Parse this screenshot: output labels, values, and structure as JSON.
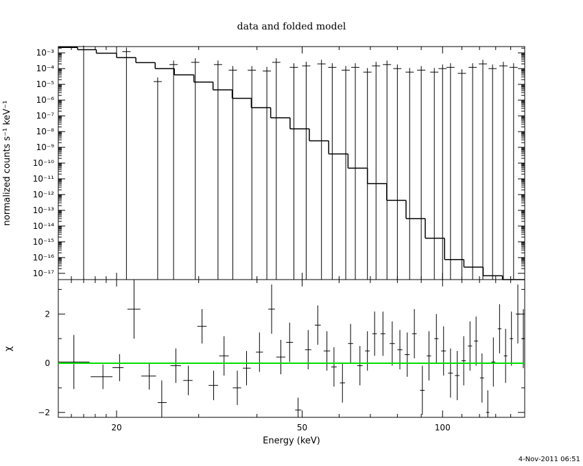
{
  "chart_data": [
    {
      "type": "line",
      "title": "data and folded model",
      "xlabel": "",
      "ylabel": "normalized counts s⁻¹ keV⁻¹",
      "xscale": "log",
      "yscale": "log",
      "xlim": [
        15,
        150
      ],
      "ylim": [
        4e-18,
        0.0025
      ],
      "grid": false,
      "y_tick_labels": [
        "10⁻³",
        "10⁻⁴",
        "10⁻⁵",
        "10⁻⁶",
        "10⁻⁷",
        "10⁻⁸",
        "10⁻⁹",
        "10⁻¹⁰",
        "10⁻¹¹",
        "10⁻¹²",
        "10⁻¹³",
        "10⁻¹⁴",
        "10⁻¹⁵",
        "10⁻¹⁶",
        "10⁻¹⁷"
      ],
      "series": [
        {
          "role": "model",
          "color": "#000000",
          "style": "step",
          "x": [
            15.0,
            16.5,
            18.1,
            20.0,
            22.0,
            24.2,
            26.6,
            29.3,
            32.2,
            35.4,
            38.9,
            42.8,
            47.1,
            51.8,
            57.0,
            62.7,
            69.0,
            75.9,
            83.5,
            91.8,
            101.0,
            111.1,
            122.2,
            134.4,
            147.9
          ],
          "y": [
            0.0022,
            0.0016,
            0.00095,
            0.0005,
            0.00024,
            0.0001,
            4e-05,
            1.4e-05,
            4.5e-06,
            1.3e-06,
            3.3e-07,
            7.5e-08,
            1.5e-08,
            2.6e-09,
            3.8e-10,
            4.8e-11,
            5e-12,
            4.3e-13,
            3e-14,
            1.7e-15,
            7.5e-17,
            2.5e-17,
            7e-18,
            4e-18,
            4e-18
          ]
        },
        {
          "role": "data",
          "color": "#000000",
          "style": "crosses",
          "x": [
            17.0,
            21.0,
            24.5,
            26.5,
            29.5,
            33.0,
            35.5,
            39.0,
            42.0,
            44.0,
            48.0,
            51.0,
            55.0,
            58.0,
            62.0,
            65.0,
            69.0,
            72.0,
            76.0,
            80.0,
            85.0,
            90.0,
            96.0,
            100.0,
            104.0,
            110.0,
            116.0,
            122.0,
            128.0,
            135.0,
            142.0
          ],
          "y": [
            0.0016,
            0.0012,
            1.5e-05,
            0.00018,
            0.00025,
            0.00018,
            8e-05,
            8e-05,
            7e-05,
            0.00025,
            0.00012,
            0.00015,
            0.0002,
            0.00012,
            8e-05,
            0.00012,
            6e-05,
            0.00015,
            0.00018,
            0.0001,
            6e-05,
            8e-05,
            6e-05,
            0.0001,
            0.00012,
            5e-05,
            0.00012,
            0.0002,
            0.0001,
            0.00015,
            0.00012
          ]
        }
      ]
    },
    {
      "type": "scatter",
      "title": "",
      "xlabel": "Energy (keV)",
      "ylabel": "χ",
      "xscale": "log",
      "xlim": [
        15,
        150
      ],
      "ylim": [
        -2.2,
        3.4
      ],
      "grid": false,
      "x_ticks": [
        20,
        50,
        100
      ],
      "x_tick_labels": [
        "20",
        "50",
        "100"
      ],
      "y_ticks": [
        -2,
        0,
        2
      ],
      "y_tick_labels": [
        "−2",
        "0",
        "2"
      ],
      "zero_line_color": "#00dd00",
      "series": [
        {
          "role": "residuals",
          "color": "#000000",
          "points": [
            {
              "x": 16.2,
              "y": 0.05,
              "xerr": [
                15.0,
                17.5
              ],
              "yerr": 1.1
            },
            {
              "x": 18.7,
              "y": -0.55,
              "xerr": [
                17.6,
                19.6
              ],
              "yerr": 0.5
            },
            {
              "x": 20.3,
              "y": -0.18,
              "xerr": [
                19.6,
                20.7
              ],
              "yerr": 0.55
            },
            {
              "x": 21.8,
              "y": 2.2,
              "xerr": [
                21.1,
                22.5
              ],
              "yerr": 1.2
            },
            {
              "x": 23.5,
              "y": -0.52,
              "xerr": [
                22.6,
                24.3
              ],
              "yerr": 0.55
            },
            {
              "x": 25.0,
              "y": -1.6,
              "xerr": [
                24.5,
                25.6
              ],
              "yerr": 0.9
            },
            {
              "x": 26.8,
              "y": -0.1,
              "xerr": [
                26.1,
                27.5
              ],
              "yerr": 0.7
            },
            {
              "x": 28.5,
              "y": -0.7,
              "xerr": [
                27.8,
                29.1
              ],
              "yerr": 0.6
            },
            {
              "x": 30.5,
              "y": 1.5,
              "xerr": [
                29.8,
                31.2
              ],
              "yerr": 0.7
            },
            {
              "x": 32.3,
              "y": -0.9,
              "xerr": [
                31.5,
                33.0
              ],
              "yerr": 0.6
            },
            {
              "x": 34.0,
              "y": 0.3,
              "xerr": [
                33.2,
                34.8
              ],
              "yerr": 0.8
            },
            {
              "x": 36.3,
              "y": -1.0,
              "xerr": [
                35.5,
                37.0
              ],
              "yerr": 0.7
            },
            {
              "x": 38.0,
              "y": -0.2,
              "xerr": [
                37.3,
                38.8
              ],
              "yerr": 0.7
            },
            {
              "x": 40.5,
              "y": 0.45,
              "xerr": [
                39.8,
                41.2
              ],
              "yerr": 0.8
            },
            {
              "x": 43.0,
              "y": 2.2,
              "xerr": [
                42.3,
                43.7
              ],
              "yerr": 1.0
            },
            {
              "x": 45.0,
              "y": 0.25,
              "xerr": [
                44.0,
                46.0
              ],
              "yerr": 0.7
            },
            {
              "x": 47.0,
              "y": 0.85,
              "xerr": [
                46.2,
                47.8
              ],
              "yerr": 0.8
            },
            {
              "x": 49.0,
              "y": -1.9,
              "xerr": [
                48.3,
                49.8
              ],
              "yerr": 0.5
            },
            {
              "x": 51.5,
              "y": 0.55,
              "xerr": [
                50.7,
                52.3
              ],
              "yerr": 0.8
            },
            {
              "x": 54.0,
              "y": 1.55,
              "xerr": [
                53.2,
                54.8
              ],
              "yerr": 0.8
            },
            {
              "x": 56.5,
              "y": 0.5,
              "xerr": [
                55.6,
                57.4
              ],
              "yerr": 0.8
            },
            {
              "x": 58.5,
              "y": -0.15,
              "xerr": [
                57.7,
                59.3
              ],
              "yerr": 0.8
            },
            {
              "x": 61.0,
              "y": -0.8,
              "xerr": [
                60.2,
                61.8
              ],
              "yerr": 0.8
            },
            {
              "x": 63.5,
              "y": 0.8,
              "xerr": [
                62.7,
                64.3
              ],
              "yerr": 0.8
            },
            {
              "x": 66.5,
              "y": -0.1,
              "xerr": [
                65.6,
                67.4
              ],
              "yerr": 0.8
            },
            {
              "x": 69.0,
              "y": 0.5,
              "xerr": [
                68.2,
                69.8
              ],
              "yerr": 0.8
            },
            {
              "x": 71.5,
              "y": 1.2,
              "xerr": [
                70.7,
                72.3
              ],
              "yerr": 0.9
            },
            {
              "x": 74.5,
              "y": 1.2,
              "xerr": [
                73.6,
                75.4
              ],
              "yerr": 0.9
            },
            {
              "x": 78.0,
              "y": 0.8,
              "xerr": [
                77.0,
                79.0
              ],
              "yerr": 0.9
            },
            {
              "x": 81.0,
              "y": 0.55,
              "xerr": [
                80.0,
                82.0
              ],
              "yerr": 0.8
            },
            {
              "x": 84.0,
              "y": 0.35,
              "xerr": [
                83.0,
                85.0
              ],
              "yerr": 0.9
            },
            {
              "x": 87.0,
              "y": 1.2,
              "xerr": [
                86.0,
                88.0
              ],
              "yerr": 1.0
            },
            {
              "x": 90.5,
              "y": -1.1,
              "xerr": [
                89.5,
                91.5
              ],
              "yerr": 1.0
            },
            {
              "x": 93.5,
              "y": 0.3,
              "xerr": [
                92.5,
                94.5
              ],
              "yerr": 1.0
            },
            {
              "x": 97.0,
              "y": 1.0,
              "xerr": [
                96.0,
                98.0
              ],
              "yerr": 1.0
            },
            {
              "x": 100.5,
              "y": 0.5,
              "xerr": [
                99.3,
                101.7
              ],
              "yerr": 1.0
            },
            {
              "x": 104.0,
              "y": -0.4,
              "xerr": [
                102.8,
                105.2
              ],
              "yerr": 1.0
            },
            {
              "x": 107.5,
              "y": -0.5,
              "xerr": [
                106.3,
                108.7
              ],
              "yerr": 1.0
            },
            {
              "x": 111.0,
              "y": 0.1,
              "xerr": [
                109.8,
                112.2
              ],
              "yerr": 1.0
            },
            {
              "x": 114.5,
              "y": 0.7,
              "xerr": [
                113.3,
                115.7
              ],
              "yerr": 1.0
            },
            {
              "x": 118.0,
              "y": 0.9,
              "xerr": [
                116.8,
                119.2
              ],
              "yerr": 1.0
            },
            {
              "x": 121.5,
              "y": -0.6,
              "xerr": [
                120.3,
                122.7
              ],
              "yerr": 1.0
            },
            {
              "x": 125.0,
              "y": -2.0,
              "xerr": [
                124.0,
                126.0
              ],
              "yerr": 0.9
            },
            {
              "x": 128.5,
              "y": 0.05,
              "xerr": [
                127.3,
                129.7
              ],
              "yerr": 1.0
            },
            {
              "x": 132.5,
              "y": 1.4,
              "xerr": [
                131.3,
                133.7
              ],
              "yerr": 1.0
            },
            {
              "x": 136.5,
              "y": 0.3,
              "xerr": [
                135.3,
                137.7
              ],
              "yerr": 1.1
            },
            {
              "x": 140.5,
              "y": 1.0,
              "xerr": [
                139.3,
                141.7
              ],
              "yerr": 1.1
            },
            {
              "x": 145.0,
              "y": 2.0,
              "xerr": [
                143.5,
                146.5
              ],
              "yerr": 1.2
            },
            {
              "x": 149.0,
              "y": 1.0,
              "xerr": [
                148.0,
                150.0
              ],
              "yerr": 1.2
            }
          ]
        }
      ]
    }
  ],
  "footer": {
    "timestamp": "4-Nov-2011 06:51"
  },
  "colors": {
    "background": "#ffffff",
    "foreground": "#000000",
    "zero_line": "#00dd00"
  }
}
